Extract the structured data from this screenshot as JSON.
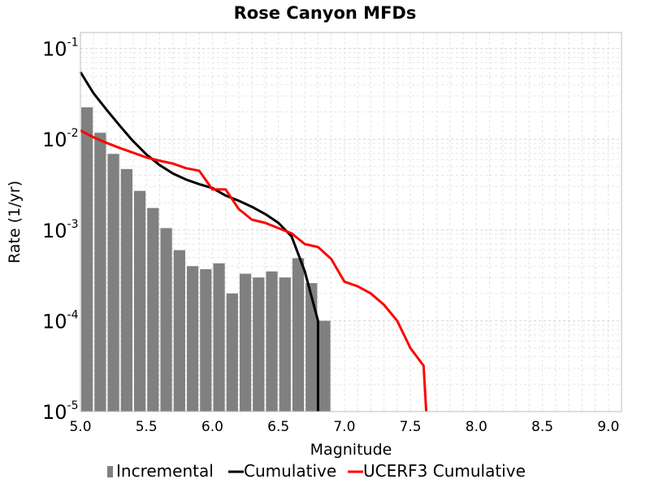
{
  "chart_data": {
    "type": "bar+line",
    "title": "Rose Canyon MFDs",
    "xlabel": "Magnitude",
    "ylabel": "Rate (1/yr)",
    "xlim": [
      5.0,
      9.1
    ],
    "ylim": [
      1e-05,
      0.15
    ],
    "yscale": "log",
    "grid": true,
    "legend_position": "bottom",
    "x_ticks": [
      "5.0",
      "5.5",
      "6.0",
      "6.5",
      "7.0",
      "7.5",
      "8.0",
      "8.5",
      "9.0"
    ],
    "x_tick_values": [
      5.0,
      5.5,
      6.0,
      6.5,
      7.0,
      7.5,
      8.0,
      8.5,
      9.0
    ],
    "y_ticks": [
      {
        "base": "10",
        "exp": "-1",
        "value": 0.1
      },
      {
        "base": "10",
        "exp": "-2",
        "value": 0.01
      },
      {
        "base": "10",
        "exp": "-3",
        "value": 0.001
      },
      {
        "base": "10",
        "exp": "-4",
        "value": 0.0001
      },
      {
        "base": "10",
        "exp": "-5",
        "value": 1e-05
      }
    ],
    "series": [
      {
        "name": "Incremental",
        "kind": "bar",
        "color": "#808080",
        "bar_width": 0.1,
        "x": [
          5.05,
          5.15,
          5.25,
          5.35,
          5.45,
          5.55,
          5.65,
          5.75,
          5.85,
          5.95,
          6.05,
          6.15,
          6.25,
          6.35,
          6.45,
          6.55,
          6.65,
          6.75,
          6.85
        ],
        "values": [
          0.0225,
          0.0118,
          0.0069,
          0.0047,
          0.0027,
          0.00175,
          0.00105,
          0.0006,
          0.0004,
          0.00037,
          0.00043,
          0.0002,
          0.00033,
          0.0003,
          0.00035,
          0.0003,
          0.00049,
          0.00026,
          0.0001
        ]
      },
      {
        "name": "Cumulative",
        "kind": "line",
        "color": "#000000",
        "x": [
          5.0,
          5.1,
          5.2,
          5.3,
          5.4,
          5.5,
          5.6,
          5.7,
          5.8,
          5.9,
          6.0,
          6.1,
          6.2,
          6.3,
          6.4,
          6.5,
          6.6,
          6.7,
          6.8,
          6.8
        ],
        "values": [
          0.055,
          0.032,
          0.021,
          0.014,
          0.0095,
          0.0068,
          0.0052,
          0.0042,
          0.0036,
          0.0032,
          0.0029,
          0.0024,
          0.0021,
          0.0018,
          0.0015,
          0.0012,
          0.00085,
          0.00035,
          0.0001,
          1e-05
        ]
      },
      {
        "name": "UCERF3 Cumulative",
        "kind": "line",
        "color": "#ff0000",
        "x": [
          5.0,
          5.1,
          5.2,
          5.3,
          5.4,
          5.5,
          5.6,
          5.7,
          5.8,
          5.9,
          6.0,
          6.1,
          6.2,
          6.3,
          6.4,
          6.5,
          6.6,
          6.7,
          6.8,
          6.9,
          7.0,
          7.1,
          7.2,
          7.3,
          7.4,
          7.5,
          7.6,
          7.62
        ],
        "values": [
          0.0125,
          0.0105,
          0.0091,
          0.008,
          0.0071,
          0.0063,
          0.0058,
          0.0054,
          0.0048,
          0.0045,
          0.0028,
          0.0028,
          0.0017,
          0.0013,
          0.0012,
          0.00105,
          0.00092,
          0.0007,
          0.00065,
          0.00048,
          0.00027,
          0.00024,
          0.0002,
          0.00015,
          0.0001,
          5e-05,
          3.2e-05,
          1e-05
        ]
      }
    ],
    "legend": [
      {
        "label": "Incremental",
        "symbol": "bar",
        "color": "#808080"
      },
      {
        "label": "Cumulative",
        "symbol": "line",
        "color": "#000000"
      },
      {
        "label": "UCERF3 Cumulative",
        "symbol": "line",
        "color": "#ff0000"
      }
    ]
  }
}
